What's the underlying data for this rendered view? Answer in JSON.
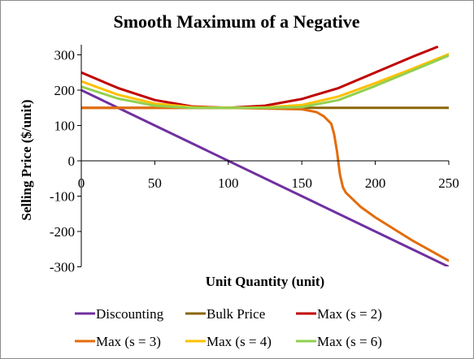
{
  "chart_data": {
    "type": "line",
    "title": "Smooth Maximum of a Negative",
    "xlabel": "Unit  Quantity  (unit)",
    "ylabel": "Selling  Price  ($/unit)",
    "xlim": [
      0,
      250
    ],
    "ylim": [
      -300,
      320
    ],
    "x_ticks": [
      "0",
      "50",
      "100",
      "150",
      "200",
      "250"
    ],
    "y_ticks": [
      "300",
      "200",
      "100",
      "0",
      "-100",
      "-200",
      "-300"
    ],
    "grid": false,
    "legend_position": "bottom",
    "series": [
      {
        "name": "Discounting",
        "color": "#7030a0",
        "x": [
          0,
          250
        ],
        "y": [
          200,
          -300
        ]
      },
      {
        "name": "Bulk Price",
        "color": "#8b6508",
        "x": [
          0,
          250
        ],
        "y": [
          150,
          150
        ]
      },
      {
        "name": "Max (s = 2)",
        "color": "#c00000",
        "x": [
          0,
          25,
          50,
          75,
          100,
          125,
          150,
          175,
          200,
          225,
          242
        ],
        "y": [
          250,
          206,
          172,
          154,
          150,
          156,
          175,
          206,
          250,
          294,
          322
        ]
      },
      {
        "name": "Max (s = 3)",
        "color": "#e36c0a",
        "x": [
          0,
          50,
          100,
          150,
          160,
          165,
          170,
          172,
          174,
          176,
          178,
          180,
          190,
          200,
          225,
          250
        ],
        "y": [
          150,
          150,
          150,
          146,
          138,
          126,
          105,
          75,
          25,
          -40,
          -75,
          -90,
          -130,
          -160,
          -225,
          -283
        ]
      },
      {
        "name": "Max (s = 4)",
        "color": "#ffc000",
        "x": [
          0,
          25,
          50,
          75,
          100,
          125,
          150,
          175,
          200,
          225,
          250
        ],
        "y": [
          225,
          187,
          162,
          152,
          150,
          151,
          158,
          182,
          220,
          260,
          302
        ]
      },
      {
        "name": "Max (s = 6)",
        "color": "#92d050",
        "x": [
          0,
          25,
          50,
          75,
          100,
          125,
          150,
          175,
          200,
          225,
          250
        ],
        "y": [
          210,
          176,
          156,
          150,
          150,
          150,
          152,
          172,
          212,
          255,
          298
        ]
      }
    ]
  }
}
